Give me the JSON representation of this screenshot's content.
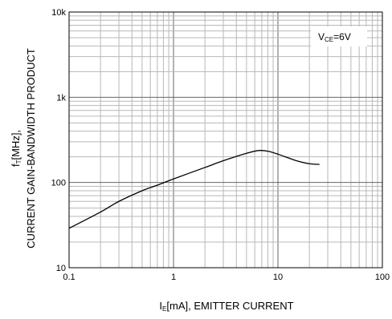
{
  "chart_data": {
    "type": "line",
    "xscale": "log",
    "yscale": "log",
    "xlim": [
      0.1,
      100
    ],
    "ylim": [
      10,
      10000
    ],
    "grid": true,
    "xlabel": {
      "main": "I",
      "sub": "E",
      "rest": "[mA], EMITTER CURRENT"
    },
    "ylabel": {
      "line1_main": "f",
      "line1_sub": "T",
      "line1_rest": "[MHz],",
      "line2": "CURRENT GAIN-BANDWIDTH PRODUCT"
    },
    "annotation": {
      "main": "V",
      "sub": "CE",
      "rest": "=6V"
    },
    "x_ticks": [
      {
        "value": 0.1,
        "label": "0.1"
      },
      {
        "value": 1,
        "label": "1"
      },
      {
        "value": 10,
        "label": "10"
      },
      {
        "value": 100,
        "label": "100"
      }
    ],
    "y_ticks": [
      {
        "value": 10,
        "label": "10"
      },
      {
        "value": 100,
        "label": "100"
      },
      {
        "value": 1000,
        "label": "1k"
      },
      {
        "value": 10000,
        "label": "10k"
      }
    ],
    "series": [
      {
        "x": [
          0.1,
          0.2,
          0.3,
          0.5,
          0.7,
          1,
          2,
          3,
          5,
          6.5,
          8,
          10,
          15,
          20,
          25
        ],
        "y": [
          29,
          45,
          60,
          80,
          93,
          110,
          150,
          180,
          220,
          237,
          233,
          215,
          180,
          166,
          163
        ]
      }
    ]
  }
}
